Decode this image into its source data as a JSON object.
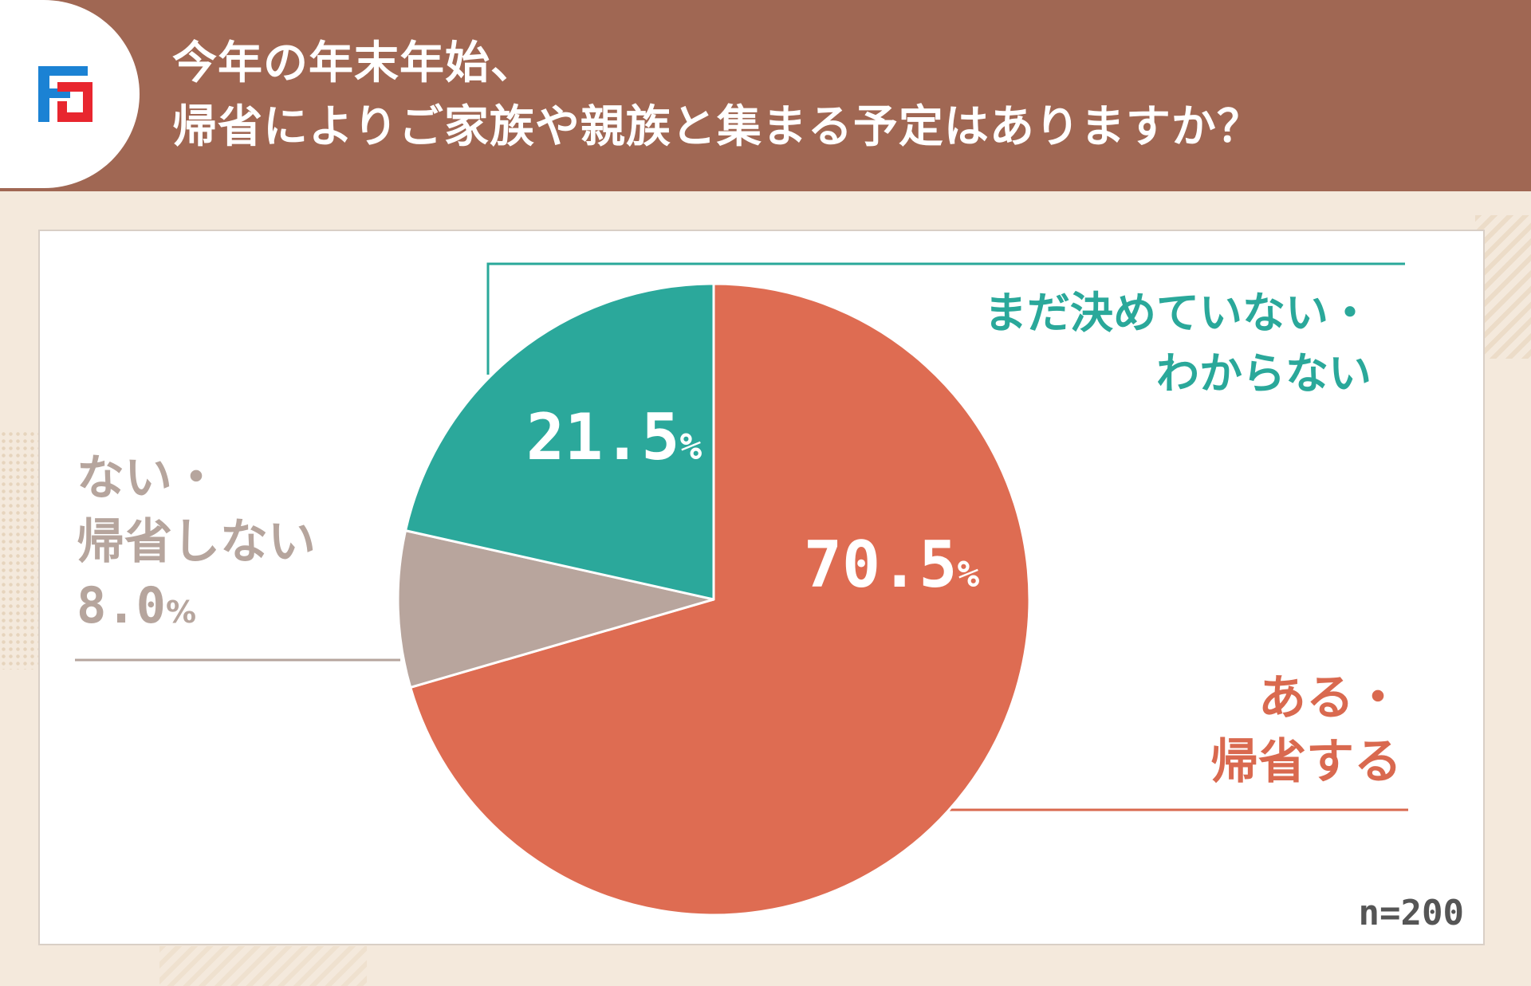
{
  "header": {
    "title_line1": "今年の年末年始、",
    "title_line2": "帰省によりご家族や親族と集まる予定はありますか？"
  },
  "chart_data": {
    "type": "pie",
    "title": "今年の年末年始、帰省によりご家族や親族と集まる予定はありますか？",
    "unit": "%",
    "slices": [
      {
        "label": "ある・帰省する",
        "value": 70.5,
        "value_text": "70.5",
        "color": "#de6c52"
      },
      {
        "label": "ない・帰省しない",
        "value": 8.0,
        "value_text": "8.0",
        "color": "#b8a59d"
      },
      {
        "label": "まだ決めていない・わからない",
        "value": 21.5,
        "value_text": "21.5",
        "color": "#2ba89b"
      }
    ],
    "sample_size": "n=200"
  },
  "labels": {
    "undecided_line1": "まだ決めていない・",
    "undecided_line2": "わからない",
    "yes_line1": "ある・",
    "yes_line2": "帰省する",
    "no_line1": "ない・",
    "no_line2": "帰省しない",
    "no_value": "8.0",
    "percent_sign": "%"
  },
  "colors": {
    "header": "#a06753",
    "teal": "#2aa89a",
    "orange": "#d9694f",
    "gray": "#b6a59d"
  },
  "icons": {
    "logo": "brand-logo"
  }
}
